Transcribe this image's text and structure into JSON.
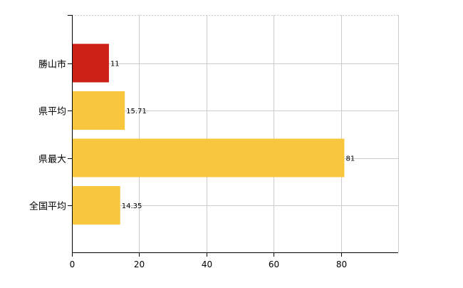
{
  "chart_data": {
    "type": "bar",
    "orientation": "horizontal",
    "categories": [
      "勝山市",
      "県平均",
      "県最大",
      "全国平均"
    ],
    "values": [
      11,
      15.71,
      81,
      14.35
    ],
    "value_labels": [
      "11",
      "15.71",
      "81",
      "14.35"
    ],
    "bar_colors": [
      "#cc1f16",
      "#f8c73d",
      "#f8c73d",
      "#f8c73d"
    ],
    "xlim": [
      0,
      97
    ],
    "xticks": [
      0,
      20,
      40,
      60,
      80
    ],
    "xtick_labels": [
      "0",
      "20",
      "40",
      "60",
      "80"
    ],
    "grid": true,
    "grid_color": "#cccccc",
    "axis_color": "#000000",
    "legend": "none",
    "title": "",
    "xlabel": "",
    "ylabel": ""
  }
}
